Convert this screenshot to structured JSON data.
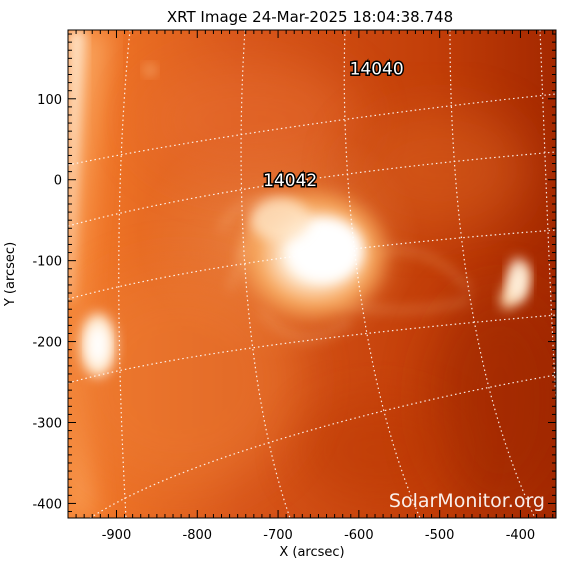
{
  "title": "XRT Image 24-Mar-2025 18:04:38.748",
  "x_axis": {
    "label": "X (arcsec)",
    "range": [
      -960,
      -356
    ],
    "ticks": [
      -900,
      -800,
      -700,
      -600,
      -500,
      -400
    ]
  },
  "y_axis": {
    "label": "Y (arcsec)",
    "range": [
      -418,
      185
    ],
    "ticks": [
      100,
      0,
      -100,
      -200,
      -300,
      -400
    ]
  },
  "active_regions": [
    {
      "label": "14040",
      "x": -578,
      "y": 130
    },
    {
      "label": "14042",
      "x": -685,
      "y": -8
    }
  ],
  "watermark": "SolarMonitor.org",
  "colors": {
    "corona_dark": "#a42800",
    "corona_mid": "#d85a12",
    "corona_bright": "#ffd9a8",
    "grid": "#ffffff",
    "frame": "#000000"
  }
}
